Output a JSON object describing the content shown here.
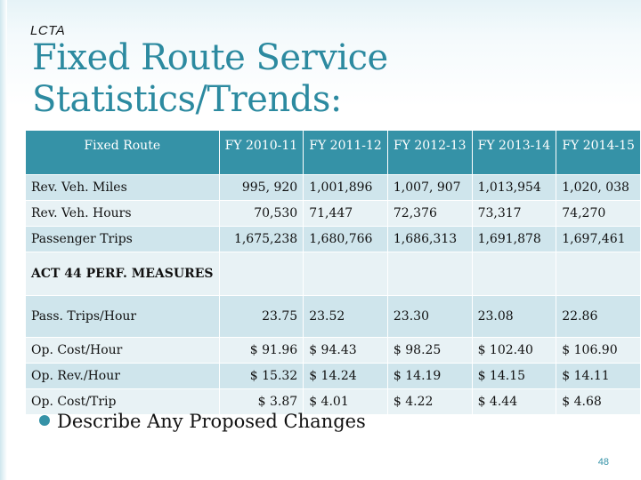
{
  "slide": {
    "org": "LCTA",
    "title": "Fixed Route Service Statistics/Trends:",
    "bullet": "Describe Any Proposed Changes",
    "page_number": "48"
  },
  "table": {
    "headers": [
      "Fixed Route",
      "FY 2010-11",
      "FY 2011-12",
      "FY 2012-13",
      "FY 2013-14",
      "FY 2014-15"
    ],
    "rows": [
      {
        "label": "Rev. Veh. Miles",
        "values": [
          "995, 920",
          "1,001,896",
          "1,007, 907",
          "1,013,954",
          "1,020, 038"
        ]
      },
      {
        "label": "Rev. Veh. Hours",
        "values": [
          "70,530",
          "71,447",
          "72,376",
          "73,317",
          "74,270"
        ]
      },
      {
        "label": "Passenger Trips",
        "values": [
          "1,675,238",
          "1,680,766",
          "1,686,313",
          "1,691,878",
          "1,697,461"
        ]
      },
      {
        "label": "ACT 44 PERF. MEASURES",
        "values": [
          "",
          "",
          "",
          "",
          ""
        ]
      },
      {
        "label": "Pass. Trips/Hour",
        "values": [
          "23.75",
          "23.52",
          "23.30",
          "23.08",
          "22.86"
        ]
      },
      {
        "label": "Op. Cost/Hour",
        "values": [
          "$ 91.96",
          "$ 94.43",
          "$ 98.25",
          "$ 102.40",
          "$ 106.90"
        ]
      },
      {
        "label": "Op. Rev./Hour",
        "values": [
          "$ 15.32",
          "$ 14.24",
          "$ 14.19",
          "$ 14.15",
          "$ 14.11"
        ]
      },
      {
        "label": "Op. Cost/Trip",
        "values": [
          "$ 3.87",
          "$ 4.01",
          "$ 4.22",
          "$ 4.44",
          "$ 4.68"
        ]
      }
    ]
  },
  "colors": {
    "accent": "#3592a7",
    "title": "#2c8aa0",
    "row_odd": "#cfe5ec",
    "row_even": "#e8f2f5"
  }
}
